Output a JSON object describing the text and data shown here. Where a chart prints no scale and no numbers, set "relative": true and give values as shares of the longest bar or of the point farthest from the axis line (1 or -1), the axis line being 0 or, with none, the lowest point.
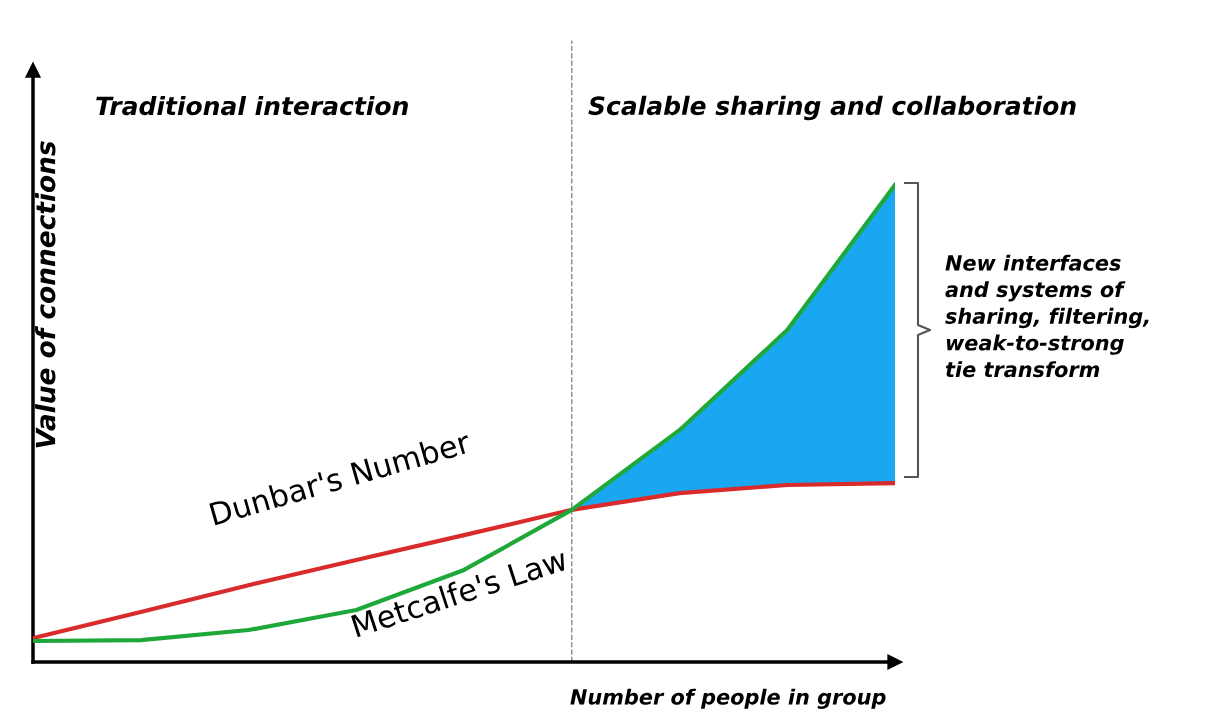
{
  "chart_data": {
    "type": "line",
    "relative": true,
    "xlabel": "Number of people in group",
    "ylabel": "Value of connections",
    "categories": [
      null,
      null,
      null,
      null,
      null,
      null,
      null,
      null,
      null
    ],
    "series": [
      {
        "type": "area",
        "color": "#1aa7f2",
        "values": [
          null,
          null,
          null,
          null,
          null,
          0.319,
          0.486,
          0.696,
          1.0
        ]
      },
      {
        "name": "Dunbar's Number",
        "color": "#d92b2b",
        "values": [
          0.05,
          0.105,
          0.161,
          0.214,
          0.266,
          0.319,
          0.354,
          0.371,
          0.375
        ]
      },
      {
        "name": "Metcalfe's Law",
        "color": "#1fa83a",
        "values": [
          0.044,
          0.046,
          0.067,
          0.109,
          0.193,
          0.319,
          0.486,
          0.696,
          1.0
        ]
      }
    ],
    "annotations": [
      "Traditional interaction",
      "Scalable sharing and collaboration",
      "New interfaces\nand systems of\nsharing, filtering,\nweak-to-strong\ntie transform"
    ],
    "legend": false,
    "marker": "none",
    "line_style": "solid"
  }
}
